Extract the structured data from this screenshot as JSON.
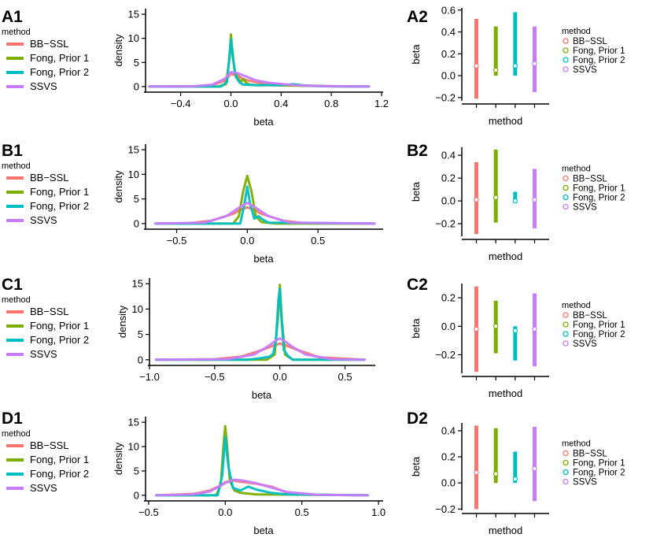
{
  "legend": {
    "title": "method",
    "labels": [
      "BB−SSL",
      "Fong, Prior 1",
      "Fong, Prior 2",
      "SSVS"
    ]
  },
  "colors": {
    "BB-SSL": "#F8766D",
    "Fong, Prior 1": "#7CAE00",
    "Fong, Prior 2": "#00BFC4",
    "SSVS": "#C77CFF"
  },
  "chart_data": [
    {
      "id": "A1",
      "label": "A1",
      "type": "line",
      "xlabel": "beta",
      "ylabel": "density",
      "xlim": [
        -0.68,
        1.2
      ],
      "ylim": [
        -0.5,
        15.5
      ],
      "xticks": [
        -0.4,
        0.0,
        0.4,
        0.8,
        1.2
      ],
      "xtick_labels": [
        "−0.4",
        "0.0",
        "0.4",
        "0.8",
        "1.2"
      ],
      "yticks": [
        0,
        5,
        10,
        15
      ],
      "series": [
        {
          "name": "BB-SSL",
          "x": [
            -0.65,
            -0.3,
            -0.15,
            -0.05,
            0.0,
            0.05,
            0.1,
            0.2,
            0.3,
            0.5,
            0.7,
            0.9,
            1.1
          ],
          "y": [
            0.0,
            0.05,
            0.3,
            1.2,
            2.6,
            2.3,
            1.5,
            0.9,
            0.6,
            0.3,
            0.15,
            0.05,
            0.0
          ]
        },
        {
          "name": "Fong, Prior 1",
          "x": [
            -0.65,
            -0.1,
            -0.04,
            -0.01,
            0.0,
            0.01,
            0.03,
            0.05,
            0.08,
            0.1,
            0.12,
            0.15,
            0.2,
            0.3,
            0.5,
            0.8,
            1.1
          ],
          "y": [
            0.0,
            0.0,
            0.5,
            6.0,
            10.8,
            8.0,
            3.0,
            1.8,
            1.0,
            1.6,
            0.8,
            0.4,
            0.3,
            0.3,
            0.2,
            0.05,
            0.0
          ]
        },
        {
          "name": "Fong, Prior 2",
          "x": [
            -0.65,
            -0.08,
            -0.03,
            -0.01,
            0.0,
            0.015,
            0.04,
            0.07,
            0.1,
            0.2,
            0.4,
            0.5,
            0.6,
            0.8,
            1.1
          ],
          "y": [
            0.0,
            0.0,
            1.0,
            7.0,
            9.8,
            6.0,
            2.0,
            0.8,
            0.4,
            0.3,
            0.3,
            0.5,
            0.2,
            0.05,
            0.0
          ]
        },
        {
          "name": "SSVS",
          "x": [
            -0.65,
            -0.3,
            -0.15,
            -0.05,
            0.0,
            0.05,
            0.1,
            0.2,
            0.3,
            0.5,
            0.7,
            0.9,
            1.1
          ],
          "y": [
            0.0,
            0.05,
            0.4,
            1.6,
            3.0,
            2.8,
            2.3,
            1.3,
            0.8,
            0.3,
            0.1,
            0.05,
            0.0
          ]
        }
      ]
    },
    {
      "id": "A2",
      "label": "A2",
      "type": "range",
      "xlabel": "method",
      "ylabel": "beta",
      "ylim": [
        -0.23,
        0.62
      ],
      "yticks": [
        -0.2,
        0.0,
        0.2,
        0.4,
        0.6
      ],
      "ytick_labels": [
        "−0.2",
        "0.0",
        "0.2",
        "0.4",
        "0.6"
      ],
      "series": [
        {
          "name": "BB-SSL",
          "lower": -0.21,
          "median": 0.09,
          "upper": 0.52
        },
        {
          "name": "Fong, Prior 1",
          "lower": 0.0,
          "median": 0.05,
          "upper": 0.45
        },
        {
          "name": "Fong, Prior 2",
          "lower": 0.0,
          "median": 0.09,
          "upper": 0.58
        },
        {
          "name": "SSVS",
          "lower": -0.15,
          "median": 0.11,
          "upper": 0.45
        }
      ]
    },
    {
      "id": "B1",
      "label": "B1",
      "type": "line",
      "xlabel": "beta",
      "ylabel": "density",
      "xlim": [
        -0.72,
        0.95
      ],
      "ylim": [
        -0.5,
        15.5
      ],
      "xticks": [
        -0.5,
        0.0,
        0.5
      ],
      "xtick_labels": [
        "−0.5",
        "0.0",
        "0.5"
      ],
      "yticks": [
        0,
        5,
        10,
        15
      ],
      "series": [
        {
          "name": "BB-SSL",
          "x": [
            -0.65,
            -0.4,
            -0.25,
            -0.1,
            -0.05,
            0.0,
            0.05,
            0.1,
            0.25,
            0.4,
            0.9
          ],
          "y": [
            0.0,
            0.1,
            0.6,
            2.0,
            2.8,
            3.3,
            2.8,
            2.0,
            0.6,
            0.1,
            0.0
          ]
        },
        {
          "name": "Fong, Prior 1",
          "x": [
            -0.65,
            -0.1,
            -0.06,
            -0.03,
            0.0,
            0.03,
            0.06,
            0.1,
            0.2,
            0.9
          ],
          "y": [
            0.0,
            0.0,
            1.5,
            6.5,
            9.7,
            6.5,
            1.5,
            0.3,
            0.0,
            0.0
          ]
        },
        {
          "name": "Fong, Prior 2",
          "x": [
            -0.65,
            -0.05,
            -0.02,
            0.0,
            0.02,
            0.05,
            0.08,
            0.11,
            0.15,
            0.9
          ],
          "y": [
            0.0,
            0.0,
            4.0,
            7.5,
            4.0,
            1.0,
            1.5,
            0.8,
            0.2,
            0.0
          ]
        },
        {
          "name": "SSVS",
          "x": [
            -0.65,
            -0.3,
            -0.15,
            -0.05,
            0.0,
            0.05,
            0.15,
            0.3,
            0.9
          ],
          "y": [
            0.0,
            0.2,
            1.5,
            3.4,
            4.2,
            3.4,
            1.5,
            0.2,
            0.0
          ]
        }
      ]
    },
    {
      "id": "B2",
      "label": "B2",
      "type": "range",
      "xlabel": "method",
      "ylabel": "beta",
      "ylim": [
        -0.31,
        0.47
      ],
      "yticks": [
        -0.2,
        0.0,
        0.2,
        0.4
      ],
      "ytick_labels": [
        "−0.2",
        "0.0",
        "0.2",
        "0.4"
      ],
      "series": [
        {
          "name": "BB-SSL",
          "lower": -0.29,
          "median": 0.01,
          "upper": 0.34
        },
        {
          "name": "Fong, Prior 1",
          "lower": -0.19,
          "median": 0.03,
          "upper": 0.45
        },
        {
          "name": "Fong, Prior 2",
          "lower": -0.02,
          "median": 0.0,
          "upper": 0.08
        },
        {
          "name": "SSVS",
          "lower": -0.24,
          "median": 0.01,
          "upper": 0.28
        }
      ]
    },
    {
      "id": "C1",
      "label": "C1",
      "type": "line",
      "xlabel": "beta",
      "ylabel": "density",
      "xlim": [
        -1.0,
        0.72
      ],
      "ylim": [
        -0.5,
        15.5
      ],
      "xticks": [
        -1.0,
        -0.5,
        0.0,
        0.5
      ],
      "xtick_labels": [
        "−1.0",
        "−0.5",
        "0.0",
        "0.5"
      ],
      "yticks": [
        0,
        5,
        10,
        15
      ],
      "series": [
        {
          "name": "BB-SSL",
          "x": [
            -0.95,
            -0.5,
            -0.3,
            -0.15,
            -0.05,
            0.0,
            0.05,
            0.15,
            0.3,
            0.65
          ],
          "y": [
            0.0,
            0.1,
            0.6,
            1.8,
            2.8,
            3.2,
            2.8,
            1.8,
            0.5,
            0.0
          ]
        },
        {
          "name": "Fong, Prior 1",
          "x": [
            -0.95,
            -0.1,
            -0.04,
            -0.015,
            0.0,
            0.015,
            0.04,
            0.1,
            0.65
          ],
          "y": [
            0.0,
            0.0,
            1.0,
            8.0,
            14.8,
            8.0,
            1.0,
            0.0,
            0.0
          ]
        },
        {
          "name": "Fong, Prior 2",
          "x": [
            -0.95,
            -0.25,
            -0.15,
            -0.08,
            -0.05,
            -0.03,
            -0.01,
            0.0,
            0.01,
            0.03,
            0.06,
            0.1,
            0.65
          ],
          "y": [
            0.0,
            0.0,
            0.3,
            0.6,
            1.2,
            4.0,
            12.0,
            14.0,
            9.0,
            2.0,
            0.8,
            0.0,
            0.0
          ]
        },
        {
          "name": "SSVS",
          "x": [
            -0.95,
            -0.4,
            -0.2,
            -0.1,
            -0.03,
            0.0,
            0.03,
            0.1,
            0.2,
            0.4,
            0.65
          ],
          "y": [
            0.0,
            0.1,
            1.0,
            2.5,
            3.8,
            4.2,
            3.8,
            2.5,
            1.0,
            0.1,
            0.0
          ]
        }
      ]
    },
    {
      "id": "C2",
      "label": "C2",
      "type": "range",
      "xlabel": "method",
      "ylabel": "beta",
      "ylim": [
        -0.33,
        0.3
      ],
      "yticks": [
        -0.2,
        0.0,
        0.2
      ],
      "ytick_labels": [
        "−0.2",
        "0.0",
        "0.2"
      ],
      "series": [
        {
          "name": "BB-SSL",
          "lower": -0.32,
          "median": -0.02,
          "upper": 0.28
        },
        {
          "name": "Fong, Prior 1",
          "lower": -0.19,
          "median": 0.0,
          "upper": 0.18
        },
        {
          "name": "Fong, Prior 2",
          "lower": -0.24,
          "median": -0.03,
          "upper": 0.0
        },
        {
          "name": "SSVS",
          "lower": -0.28,
          "median": -0.02,
          "upper": 0.23
        }
      ]
    },
    {
      "id": "D1",
      "label": "D1",
      "type": "line",
      "xlabel": "beta",
      "ylabel": "density",
      "xlim": [
        -0.52,
        1.02
      ],
      "ylim": [
        -0.5,
        15.5
      ],
      "xticks": [
        -0.5,
        0.0,
        0.5,
        1.0
      ],
      "xtick_labels": [
        "−0.5",
        "0.0",
        "0.5",
        "1.0"
      ],
      "yticks": [
        0,
        5,
        10,
        15
      ],
      "series": [
        {
          "name": "BB-SSL",
          "x": [
            -0.45,
            -0.2,
            -0.1,
            -0.03,
            0.0,
            0.05,
            0.1,
            0.2,
            0.3,
            0.4,
            0.6,
            0.93
          ],
          "y": [
            0.0,
            0.3,
            1.0,
            2.0,
            2.7,
            3.0,
            2.8,
            2.4,
            1.8,
            0.6,
            0.1,
            0.0
          ]
        },
        {
          "name": "Fong, Prior 1",
          "x": [
            -0.45,
            -0.06,
            -0.03,
            -0.01,
            0.0,
            0.01,
            0.03,
            0.06,
            0.1,
            0.2,
            0.93
          ],
          "y": [
            0.0,
            0.0,
            2.0,
            11.0,
            14.2,
            11.0,
            3.0,
            1.0,
            0.5,
            0.2,
            0.0
          ]
        },
        {
          "name": "Fong, Prior 2",
          "x": [
            -0.45,
            -0.05,
            -0.02,
            0.0,
            0.02,
            0.05,
            0.1,
            0.15,
            0.2,
            0.3,
            0.4,
            0.93
          ],
          "y": [
            0.0,
            0.0,
            4.0,
            12.0,
            6.0,
            1.5,
            1.0,
            1.8,
            1.2,
            0.5,
            0.2,
            0.0
          ]
        },
        {
          "name": "SSVS",
          "x": [
            -0.45,
            -0.2,
            -0.1,
            0.0,
            0.05,
            0.1,
            0.2,
            0.3,
            0.4,
            0.6,
            0.93
          ],
          "y": [
            0.0,
            0.2,
            0.8,
            2.5,
            3.2,
            3.1,
            2.5,
            1.6,
            0.7,
            0.1,
            0.0
          ]
        }
      ]
    },
    {
      "id": "D2",
      "label": "D2",
      "type": "range",
      "xlabel": "method",
      "ylabel": "beta",
      "ylim": [
        -0.21,
        0.46
      ],
      "yticks": [
        -0.2,
        0.0,
        0.2,
        0.4
      ],
      "ytick_labels": [
        "−0.2",
        "0.0",
        "0.2",
        "0.4"
      ],
      "series": [
        {
          "name": "BB-SSL",
          "lower": -0.2,
          "median": 0.08,
          "upper": 0.44
        },
        {
          "name": "Fong, Prior 1",
          "lower": 0.0,
          "median": 0.07,
          "upper": 0.42
        },
        {
          "name": "Fong, Prior 2",
          "lower": 0.0,
          "median": 0.03,
          "upper": 0.24
        },
        {
          "name": "SSVS",
          "lower": -0.14,
          "median": 0.11,
          "upper": 0.43
        }
      ]
    }
  ]
}
